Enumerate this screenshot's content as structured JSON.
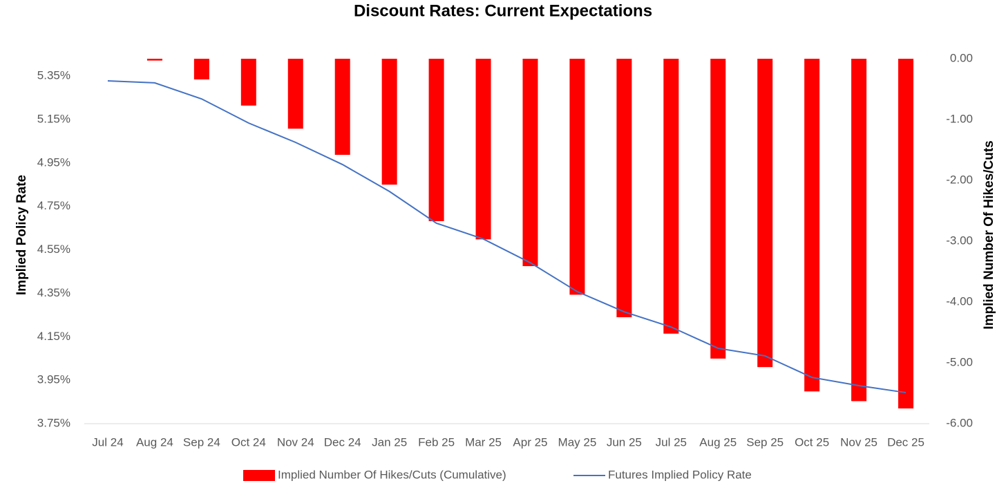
{
  "chart_data": {
    "type": "bar-line",
    "title": "Discount Rates: Current Expectations",
    "y_label": "Implied Policy Rate",
    "y2_label": "Implied Number Of Hikes/Cuts",
    "categories": [
      "Jul 24",
      "Aug 24",
      "Sep 24",
      "Oct 24",
      "Nov 24",
      "Dec 24",
      "Jan 25",
      "Feb 25",
      "Mar 25",
      "Apr 25",
      "May 25",
      "Jun 25",
      "Jul 25",
      "Aug 25",
      "Sep 25",
      "Oct 25",
      "Nov 25",
      "Dec 25"
    ],
    "series": [
      {
        "name": "Implied Number Of Hikes/Cuts (Cumulative)",
        "type": "bar",
        "axis": "y2",
        "color": "#ff0000",
        "values": [
          0,
          -0.03,
          -0.34,
          -0.77,
          -1.15,
          -1.58,
          -2.07,
          -2.67,
          -2.97,
          -3.41,
          -3.88,
          -4.25,
          -4.52,
          -4.93,
          -5.07,
          -5.47,
          -5.63,
          -5.75
        ]
      },
      {
        "name": "Futures Implied Policy Rate",
        "type": "line",
        "axis": "y",
        "color": "#4472c4",
        "values": [
          5.328,
          5.319,
          5.245,
          5.134,
          5.045,
          4.943,
          4.819,
          4.673,
          4.6,
          4.491,
          4.358,
          4.265,
          4.195,
          4.097,
          4.062,
          3.963,
          3.925,
          3.893
        ]
      }
    ],
    "ylim": [
      3.75,
      5.43
    ],
    "yticks": [
      {
        "value": 3.75,
        "label": "3.75%"
      },
      {
        "value": 3.95,
        "label": "3.95%"
      },
      {
        "value": 4.15,
        "label": "4.15%"
      },
      {
        "value": 4.35,
        "label": "4.35%"
      },
      {
        "value": 4.55,
        "label": "4.55%"
      },
      {
        "value": 4.75,
        "label": "4.75%"
      },
      {
        "value": 4.95,
        "label": "4.95%"
      },
      {
        "value": 5.15,
        "label": "5.15%"
      },
      {
        "value": 5.35,
        "label": "5.35%"
      }
    ],
    "y2lim": [
      -6,
      0
    ],
    "y2ticks": [
      {
        "value": -6,
        "label": "-6.00"
      },
      {
        "value": -5,
        "label": "-5.00"
      },
      {
        "value": -4,
        "label": "-4.00"
      },
      {
        "value": -3,
        "label": "-3.00"
      },
      {
        "value": -2,
        "label": "-2.00"
      },
      {
        "value": -1,
        "label": "-1.00"
      },
      {
        "value": 0,
        "label": "0.00"
      }
    ],
    "legend": "bottom"
  }
}
